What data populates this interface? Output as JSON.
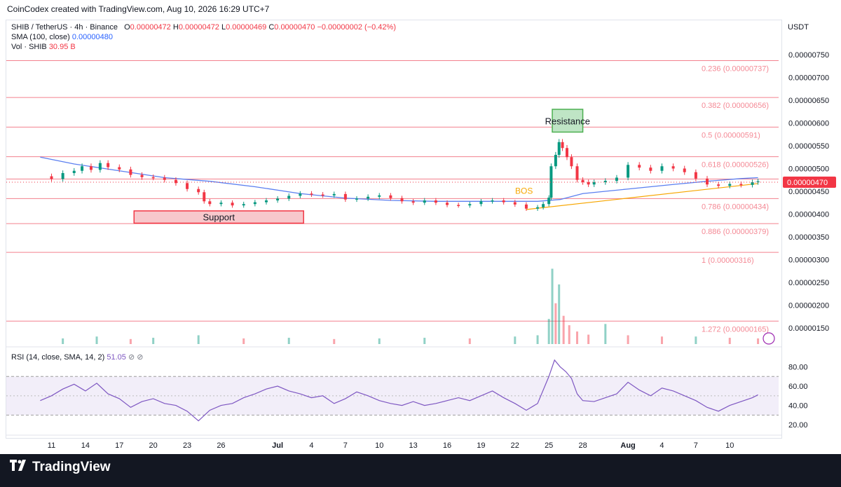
{
  "header": {
    "attribution": "CoinCodex created with TradingView.com, Aug 10, 2026 16:29 UTC+7"
  },
  "legend": {
    "symbol": "SHIB / TetherUS · 4h · Binance",
    "o_label": "O",
    "o_value": "0.00000472",
    "h_label": "H",
    "h_value": "0.00000472",
    "l_label": "L",
    "l_value": "0.00000469",
    "c_label": "C",
    "c_value": "0.00000470",
    "change": "−0.00000002 (−0.42%)",
    "sma_label": "SMA (100, close)",
    "sma_value": "0.00000480",
    "vol_label": "Vol · SHIB",
    "vol_value": "30.95 B",
    "rsi_label": "RSI (14, close, SMA, 14, 2)",
    "rsi_value": "51.05",
    "rsi_extra": "⊘ ⊘"
  },
  "currency": "USDT",
  "footer": {
    "brand": "TradingView"
  },
  "colors": {
    "up": "#089981",
    "down": "#f23645",
    "sma": "#5b7ff0",
    "trend": "#f7a600",
    "rsi": "#7e57c2",
    "fib": "#f26b7a"
  },
  "chart_data": {
    "type": "candlestick",
    "x_ticks": [
      "11",
      "14",
      "17",
      "20",
      "23",
      "26",
      "Jul",
      "4",
      "7",
      "10",
      "13",
      "16",
      "19",
      "22",
      "25",
      "28",
      "Aug",
      "4",
      "7",
      "10"
    ],
    "y_ticks": [
      "0.00000750",
      "0.00000700",
      "0.00000650",
      "0.00000600",
      "0.00000550",
      "0.00000500",
      "0.00000450",
      "0.00000400",
      "0.00000350",
      "0.00000300",
      "0.00000250",
      "0.00000200",
      "0.00000150"
    ],
    "ylim": [
      1.3e-06,
      7.7e-06
    ],
    "last_price": "0.00000470",
    "fib_levels": [
      {
        "label": "0.236 (0.00000737)",
        "value": 7.37e-06
      },
      {
        "label": "0.382 (0.00000656)",
        "value": 6.56e-06
      },
      {
        "label": "0.5 (0.00000591)",
        "value": 5.91e-06
      },
      {
        "label": "0.618 (0.00000526)",
        "value": 5.26e-06
      },
      {
        "label": "",
        "value": 4.77e-06
      },
      {
        "label": "0.786 (0.00000434)",
        "value": 4.34e-06
      },
      {
        "label": "0.886 (0.00000379)",
        "value": 3.79e-06
      },
      {
        "label": "1 (0.00000316)",
        "value": 3.16e-06
      },
      {
        "label": "1.272 (0.00000165)",
        "value": 1.65e-06
      }
    ],
    "annotations": {
      "resistance": {
        "label": "Resistance",
        "low": 5.8e-06,
        "high": 6.3e-06,
        "from_day": 25.3,
        "to_day": 28.0
      },
      "support": {
        "label": "Support",
        "low": 3.8e-06,
        "high": 4.07e-06,
        "from_day": 18.3,
        "to_day": 33.3
      },
      "bos": {
        "label": "BOS"
      }
    },
    "price_series": [
      {
        "day": 10.0,
        "close": 4.83e-06
      },
      {
        "day": 11.0,
        "close": 4.77e-06
      },
      {
        "day": 12.0,
        "close": 4.9e-06
      },
      {
        "day": 13.0,
        "close": 4.95e-06
      },
      {
        "day": 13.7,
        "close": 5.05e-06
      },
      {
        "day": 14.5,
        "close": 4.97e-06
      },
      {
        "day": 15.3,
        "close": 5.12e-06
      },
      {
        "day": 16.0,
        "close": 5.03e-06
      },
      {
        "day": 17.0,
        "close": 4.98e-06
      },
      {
        "day": 18.0,
        "close": 4.86e-06
      },
      {
        "day": 19.0,
        "close": 4.81e-06
      },
      {
        "day": 20.0,
        "close": 4.8e-06
      },
      {
        "day": 21.0,
        "close": 4.75e-06
      },
      {
        "day": 22.0,
        "close": 4.68e-06
      },
      {
        "day": 23.0,
        "close": 4.55e-06
      },
      {
        "day": 24.0,
        "close": 4.48e-06
      },
      {
        "day": 24.5,
        "close": 4.28e-06
      },
      {
        "day": 25.0,
        "close": 4.22e-06
      },
      {
        "day": 26.0,
        "close": 4.25e-06
      },
      {
        "day": 27.0,
        "close": 4.19e-06
      },
      {
        "day": 28.0,
        "close": 4.22e-06
      },
      {
        "day": 29.0,
        "close": 4.26e-06
      },
      {
        "day": 30.0,
        "close": 4.3e-06
      },
      {
        "day": 31.0,
        "close": 4.34e-06
      },
      {
        "day": 32.0,
        "close": 4.4e-06
      },
      {
        "day": 33.0,
        "close": 4.45e-06
      },
      {
        "day": 34.0,
        "close": 4.43e-06
      },
      {
        "day": 35.0,
        "close": 4.41e-06
      },
      {
        "day": 36.0,
        "close": 4.44e-06
      },
      {
        "day": 37.0,
        "close": 4.32e-06
      },
      {
        "day": 38.0,
        "close": 4.34e-06
      },
      {
        "day": 39.0,
        "close": 4.38e-06
      },
      {
        "day": 40.0,
        "close": 4.41e-06
      },
      {
        "day": 41.0,
        "close": 4.35e-06
      },
      {
        "day": 42.0,
        "close": 4.28e-06
      },
      {
        "day": 43.0,
        "close": 4.25e-06
      },
      {
        "day": 44.0,
        "close": 4.3e-06
      },
      {
        "day": 45.0,
        "close": 4.25e-06
      },
      {
        "day": 46.0,
        "close": 4.2e-06
      },
      {
        "day": 47.0,
        "close": 4.19e-06
      },
      {
        "day": 48.0,
        "close": 4.22e-06
      },
      {
        "day": 49.0,
        "close": 4.28e-06
      },
      {
        "day": 50.0,
        "close": 4.3e-06
      },
      {
        "day": 51.0,
        "close": 4.26e-06
      },
      {
        "day": 52.0,
        "close": 4.21e-06
      },
      {
        "day": 53.0,
        "close": 4.12e-06
      },
      {
        "day": 54.0,
        "close": 4.15e-06
      },
      {
        "day": 54.5,
        "close": 4.22e-06
      },
      {
        "day": 55.0,
        "close": 4.36e-06
      },
      {
        "day": 55.2,
        "close": 5.05e-06
      },
      {
        "day": 55.6,
        "close": 5.3e-06
      },
      {
        "day": 55.9,
        "close": 5.58e-06
      },
      {
        "day": 56.2,
        "close": 5.45e-06
      },
      {
        "day": 56.6,
        "close": 5.25e-06
      },
      {
        "day": 57.0,
        "close": 5.05e-06
      },
      {
        "day": 57.5,
        "close": 4.75e-06
      },
      {
        "day": 58.0,
        "close": 4.7e-06
      },
      {
        "day": 58.5,
        "close": 4.65e-06
      },
      {
        "day": 59.0,
        "close": 4.7e-06
      },
      {
        "day": 60.0,
        "close": 4.73e-06
      },
      {
        "day": 61.0,
        "close": 4.8e-06
      },
      {
        "day": 62.0,
        "close": 5.08e-06
      },
      {
        "day": 63.0,
        "close": 5.02e-06
      },
      {
        "day": 64.0,
        "close": 4.95e-06
      },
      {
        "day": 65.0,
        "close": 5.05e-06
      },
      {
        "day": 66.0,
        "close": 5e-06
      },
      {
        "day": 67.0,
        "close": 4.92e-06
      },
      {
        "day": 68.0,
        "close": 4.78e-06
      },
      {
        "day": 69.0,
        "close": 4.65e-06
      },
      {
        "day": 70.0,
        "close": 4.62e-06
      },
      {
        "day": 71.0,
        "close": 4.66e-06
      },
      {
        "day": 72.0,
        "close": 4.64e-06
      },
      {
        "day": 73.0,
        "close": 4.7e-06
      },
      {
        "day": 73.5,
        "close": 4.72e-06
      }
    ],
    "sma_series": [
      {
        "day": 10.0,
        "value": 5.25e-06
      },
      {
        "day": 13.0,
        "value": 5.1e-06
      },
      {
        "day": 17.0,
        "value": 4.95e-06
      },
      {
        "day": 21.0,
        "value": 4.8e-06
      },
      {
        "day": 25.0,
        "value": 4.72e-06
      },
      {
        "day": 29.0,
        "value": 4.6e-06
      },
      {
        "day": 33.0,
        "value": 4.45e-06
      },
      {
        "day": 37.0,
        "value": 4.35e-06
      },
      {
        "day": 41.0,
        "value": 4.3e-06
      },
      {
        "day": 45.0,
        "value": 4.28e-06
      },
      {
        "day": 50.0,
        "value": 4.28e-06
      },
      {
        "day": 54.0,
        "value": 4.28e-06
      },
      {
        "day": 56.0,
        "value": 4.32e-06
      },
      {
        "day": 58.0,
        "value": 4.45e-06
      },
      {
        "day": 62.0,
        "value": 4.55e-06
      },
      {
        "day": 66.0,
        "value": 4.65e-06
      },
      {
        "day": 69.0,
        "value": 4.72e-06
      },
      {
        "day": 72.0,
        "value": 4.78e-06
      },
      {
        "day": 73.5,
        "value": 4.8e-06
      }
    ],
    "trendline": {
      "from": {
        "day": 53.0,
        "value": 4.1e-06
      },
      "to": {
        "day": 73.5,
        "value": 4.67e-06
      }
    },
    "volume_series": [
      {
        "day": 12.0,
        "value": 9
      },
      {
        "day": 15.0,
        "value": 12
      },
      {
        "day": 18.0,
        "value": 8
      },
      {
        "day": 20.0,
        "value": 10
      },
      {
        "day": 24.0,
        "value": 14
      },
      {
        "day": 28.0,
        "value": 9
      },
      {
        "day": 32.0,
        "value": 10
      },
      {
        "day": 36.0,
        "value": 8
      },
      {
        "day": 40.0,
        "value": 9
      },
      {
        "day": 44.0,
        "value": 10
      },
      {
        "day": 48.0,
        "value": 9
      },
      {
        "day": 52.0,
        "value": 12
      },
      {
        "day": 54.0,
        "value": 14
      },
      {
        "day": 55.0,
        "value": 40
      },
      {
        "day": 55.3,
        "value": 120
      },
      {
        "day": 55.6,
        "value": 65
      },
      {
        "day": 55.9,
        "value": 95
      },
      {
        "day": 56.3,
        "value": 45
      },
      {
        "day": 56.8,
        "value": 30
      },
      {
        "day": 57.5,
        "value": 20
      },
      {
        "day": 58.5,
        "value": 15
      },
      {
        "day": 60.0,
        "value": 32
      },
      {
        "day": 62.0,
        "value": 14
      },
      {
        "day": 65.0,
        "value": 12
      },
      {
        "day": 68.0,
        "value": 12
      },
      {
        "day": 71.0,
        "value": 10
      },
      {
        "day": 73.5,
        "value": 9
      }
    ],
    "rsi": {
      "y_ticks": [
        "80.00",
        "60.00",
        "40.00",
        "20.00"
      ],
      "ylim": [
        15,
        92
      ],
      "band": [
        30,
        70
      ],
      "series": [
        {
          "day": 10.0,
          "value": 45
        },
        {
          "day": 11.0,
          "value": 50
        },
        {
          "day": 12.0,
          "value": 57
        },
        {
          "day": 13.0,
          "value": 62
        },
        {
          "day": 14.0,
          "value": 55
        },
        {
          "day": 15.0,
          "value": 63
        },
        {
          "day": 16.0,
          "value": 52
        },
        {
          "day": 17.0,
          "value": 47
        },
        {
          "day": 18.0,
          "value": 38
        },
        {
          "day": 19.0,
          "value": 44
        },
        {
          "day": 20.0,
          "value": 47
        },
        {
          "day": 21.0,
          "value": 42
        },
        {
          "day": 22.0,
          "value": 40
        },
        {
          "day": 23.0,
          "value": 34
        },
        {
          "day": 24.0,
          "value": 24
        },
        {
          "day": 25.0,
          "value": 35
        },
        {
          "day": 26.0,
          "value": 40
        },
        {
          "day": 27.0,
          "value": 42
        },
        {
          "day": 28.0,
          "value": 48
        },
        {
          "day": 29.0,
          "value": 52
        },
        {
          "day": 30.0,
          "value": 57
        },
        {
          "day": 31.0,
          "value": 60
        },
        {
          "day": 32.0,
          "value": 55
        },
        {
          "day": 33.0,
          "value": 52
        },
        {
          "day": 34.0,
          "value": 48
        },
        {
          "day": 35.0,
          "value": 50
        },
        {
          "day": 36.0,
          "value": 42
        },
        {
          "day": 37.0,
          "value": 47
        },
        {
          "day": 38.0,
          "value": 54
        },
        {
          "day": 39.0,
          "value": 50
        },
        {
          "day": 40.0,
          "value": 45
        },
        {
          "day": 41.0,
          "value": 42
        },
        {
          "day": 42.0,
          "value": 40
        },
        {
          "day": 43.0,
          "value": 44
        },
        {
          "day": 44.0,
          "value": 40
        },
        {
          "day": 45.0,
          "value": 42
        },
        {
          "day": 46.0,
          "value": 45
        },
        {
          "day": 47.0,
          "value": 48
        },
        {
          "day": 48.0,
          "value": 45
        },
        {
          "day": 49.0,
          "value": 50
        },
        {
          "day": 50.0,
          "value": 55
        },
        {
          "day": 51.0,
          "value": 48
        },
        {
          "day": 52.0,
          "value": 42
        },
        {
          "day": 53.0,
          "value": 35
        },
        {
          "day": 54.0,
          "value": 42
        },
        {
          "day": 55.0,
          "value": 70
        },
        {
          "day": 55.5,
          "value": 87
        },
        {
          "day": 56.0,
          "value": 80
        },
        {
          "day": 56.5,
          "value": 75
        },
        {
          "day": 57.0,
          "value": 68
        },
        {
          "day": 57.5,
          "value": 52
        },
        {
          "day": 58.0,
          "value": 45
        },
        {
          "day": 59.0,
          "value": 44
        },
        {
          "day": 60.0,
          "value": 48
        },
        {
          "day": 61.0,
          "value": 52
        },
        {
          "day": 62.0,
          "value": 64
        },
        {
          "day": 63.0,
          "value": 56
        },
        {
          "day": 64.0,
          "value": 50
        },
        {
          "day": 65.0,
          "value": 58
        },
        {
          "day": 66.0,
          "value": 55
        },
        {
          "day": 67.0,
          "value": 50
        },
        {
          "day": 68.0,
          "value": 45
        },
        {
          "day": 69.0,
          "value": 38
        },
        {
          "day": 70.0,
          "value": 34
        },
        {
          "day": 71.0,
          "value": 40
        },
        {
          "day": 72.0,
          "value": 44
        },
        {
          "day": 73.0,
          "value": 48
        },
        {
          "day": 73.5,
          "value": 51
        }
      ]
    }
  }
}
